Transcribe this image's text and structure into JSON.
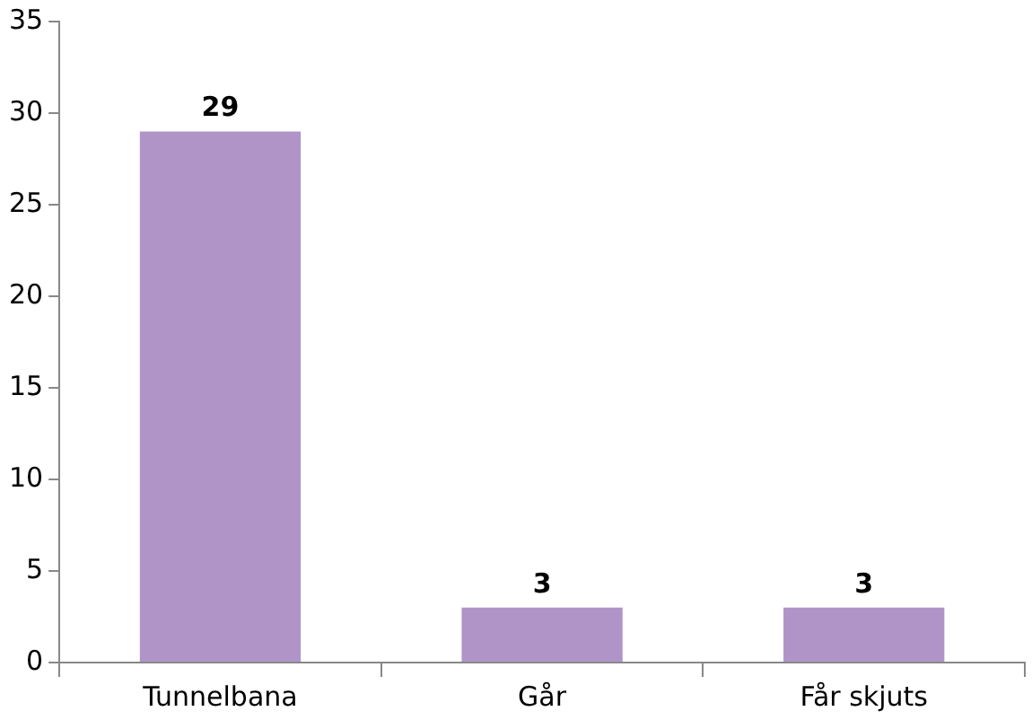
{
  "chart_data": {
    "type": "bar",
    "categories": [
      "Tunnelbana",
      "Går",
      "Får skjuts"
    ],
    "values": [
      29,
      3,
      3
    ],
    "color": "#b094c8",
    "ylim": [
      0,
      35
    ],
    "yticks": [
      0,
      5,
      10,
      15,
      20,
      25,
      30,
      35
    ],
    "grid": false,
    "data_labels": true
  }
}
